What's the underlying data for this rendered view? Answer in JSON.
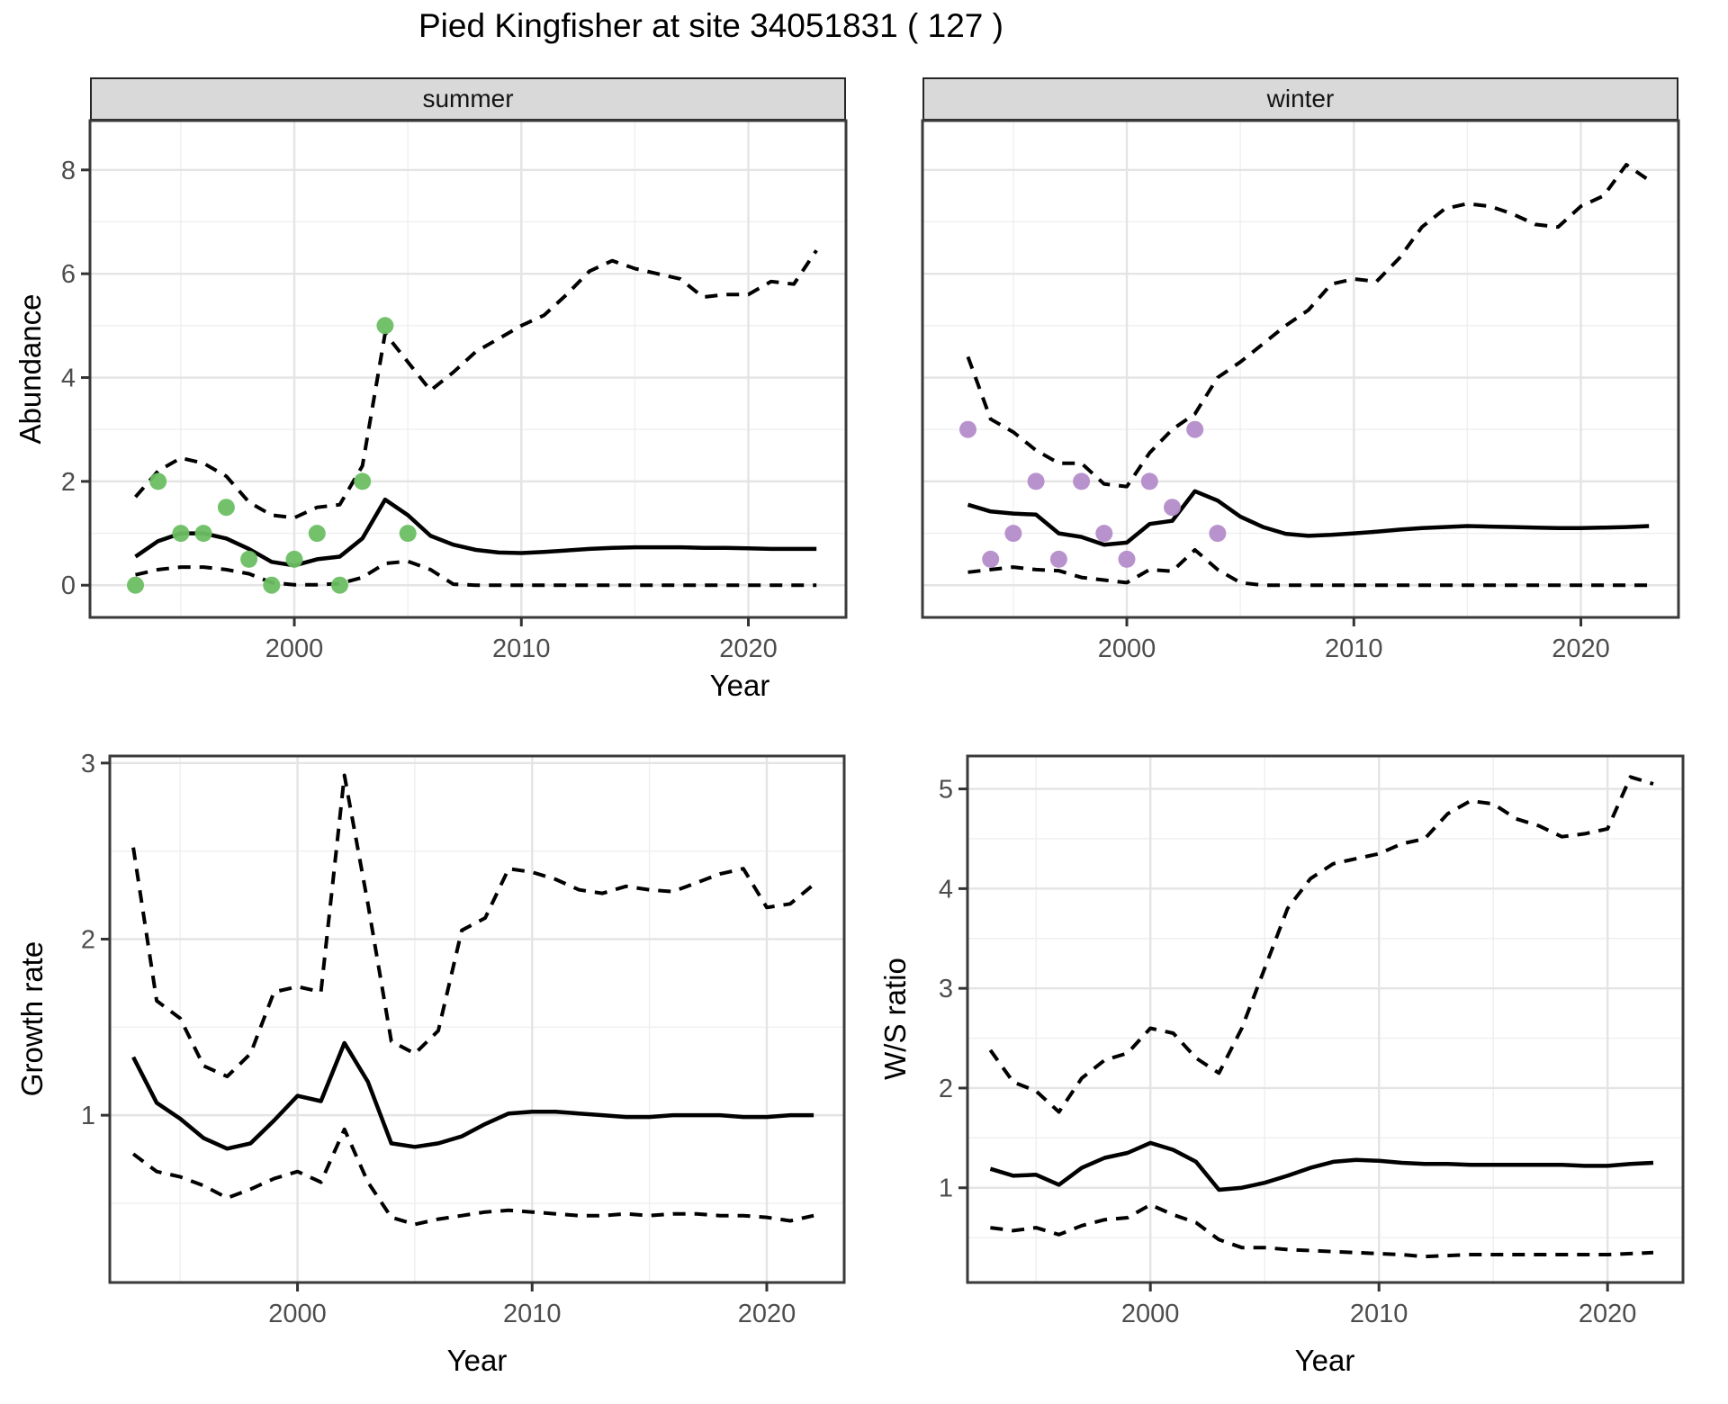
{
  "title": "Pied Kingfisher at site 34051831 ( 127 )",
  "top_xlabel": "Year",
  "colors": {
    "summer_point": "#6CBF63",
    "winter_point": "#B48CC9",
    "line": "#000000",
    "grid_major": "#E4E4E4",
    "grid_minor": "#EFEFEF",
    "panel_border": "#3A3A3A",
    "strip_bg": "#D9D9D9",
    "tick_text": "#4D4D4D",
    "panel_bg": "#FFFFFF"
  },
  "chart_data": [
    {
      "id": "abundance_summer",
      "type": "line",
      "facet_label": "summer",
      "ylabel": "Abundance",
      "xlabel": "Year",
      "x_ticks": [
        2000,
        2010,
        2020
      ],
      "y_ticks": [
        0,
        2,
        4,
        6,
        8
      ],
      "xlim": [
        1991.0,
        2024.3
      ],
      "ylim": [
        -0.62,
        8.95
      ],
      "minor_x": 5,
      "minor_y": 1,
      "grid": true,
      "legend": "none",
      "series": [
        {
          "name": "median_estimate",
          "style": "solid",
          "x": [
            1993,
            1994,
            1995,
            1996,
            1997,
            1998,
            1999,
            2000,
            2001,
            2002,
            2003,
            2004,
            2005,
            2006,
            2007,
            2008,
            2009,
            2010,
            2011,
            2012,
            2013,
            2014,
            2015,
            2016,
            2017,
            2018,
            2019,
            2020,
            2021,
            2022,
            2023
          ],
          "y": [
            0.55,
            0.85,
            1.0,
            1.0,
            0.9,
            0.7,
            0.45,
            0.38,
            0.5,
            0.55,
            0.9,
            1.65,
            1.35,
            0.95,
            0.78,
            0.68,
            0.63,
            0.62,
            0.64,
            0.67,
            0.7,
            0.72,
            0.73,
            0.73,
            0.73,
            0.72,
            0.72,
            0.71,
            0.7,
            0.7,
            0.7
          ]
        },
        {
          "name": "lower_ci",
          "style": "dashed",
          "x": [
            1993,
            1994,
            1995,
            1996,
            1997,
            1998,
            1999,
            2000,
            2001,
            2002,
            2003,
            2004,
            2005,
            2006,
            2007,
            2008,
            2009,
            2010,
            2011,
            2012,
            2013,
            2014,
            2015,
            2016,
            2017,
            2018,
            2019,
            2020,
            2021,
            2022,
            2023
          ],
          "y": [
            0.2,
            0.3,
            0.35,
            0.35,
            0.3,
            0.22,
            0.05,
            0.01,
            0.01,
            0.03,
            0.15,
            0.42,
            0.46,
            0.3,
            0.02,
            0,
            0,
            0,
            0,
            0,
            0,
            0,
            0,
            0,
            0,
            0,
            0,
            0,
            0,
            0,
            0
          ]
        },
        {
          "name": "upper_ci",
          "style": "dashed",
          "x": [
            1993,
            1994,
            1995,
            1996,
            1997,
            1998,
            1999,
            2000,
            2001,
            2002,
            2003,
            2004,
            2005,
            2006,
            2007,
            2008,
            2009,
            2010,
            2011,
            2012,
            2013,
            2014,
            2015,
            2016,
            2017,
            2018,
            2019,
            2020,
            2021,
            2022,
            2023
          ],
          "y": [
            1.7,
            2.2,
            2.45,
            2.35,
            2.1,
            1.6,
            1.35,
            1.3,
            1.5,
            1.55,
            2.3,
            4.85,
            4.3,
            3.75,
            4.1,
            4.5,
            4.75,
            5.0,
            5.2,
            5.6,
            6.05,
            6.25,
            6.1,
            6.0,
            5.9,
            5.55,
            5.6,
            5.6,
            5.85,
            5.8,
            6.45
          ]
        },
        {
          "name": "observed_counts",
          "style": "points",
          "color": "#6CBF63",
          "x": [
            1993,
            1994,
            1995,
            1996,
            1997,
            1998,
            1999,
            2000,
            2001,
            2002,
            2003,
            2004,
            2005
          ],
          "y": [
            0,
            2,
            1,
            1,
            1.5,
            0.5,
            0,
            0.5,
            1,
            0,
            2,
            5,
            1
          ]
        }
      ]
    },
    {
      "id": "abundance_winter",
      "type": "line",
      "facet_label": "winter",
      "ylabel": "Abundance",
      "xlabel": "Year",
      "x_ticks": [
        2000,
        2010,
        2020
      ],
      "y_ticks": [
        0,
        2,
        4,
        6,
        8
      ],
      "xlim": [
        1991.0,
        2024.3
      ],
      "ylim": [
        -0.62,
        8.95
      ],
      "minor_x": 5,
      "minor_y": 1,
      "grid": true,
      "legend": "none",
      "series": [
        {
          "name": "median_estimate",
          "style": "solid",
          "x": [
            1993,
            1994,
            1995,
            1996,
            1997,
            1998,
            1999,
            2000,
            2001,
            2002,
            2003,
            2004,
            2005,
            2006,
            2007,
            2008,
            2009,
            2010,
            2011,
            2012,
            2013,
            2014,
            2015,
            2016,
            2017,
            2018,
            2019,
            2020,
            2021,
            2022,
            2023
          ],
          "y": [
            1.55,
            1.42,
            1.38,
            1.36,
            1.0,
            0.93,
            0.78,
            0.82,
            1.18,
            1.24,
            1.81,
            1.63,
            1.32,
            1.12,
            0.99,
            0.95,
            0.97,
            1.0,
            1.03,
            1.07,
            1.1,
            1.12,
            1.14,
            1.13,
            1.12,
            1.11,
            1.1,
            1.1,
            1.11,
            1.12,
            1.14
          ]
        },
        {
          "name": "lower_ci",
          "style": "dashed",
          "x": [
            1993,
            1994,
            1995,
            1996,
            1997,
            1998,
            1999,
            2000,
            2001,
            2002,
            2003,
            2004,
            2005,
            2006,
            2007,
            2008,
            2009,
            2010,
            2011,
            2012,
            2013,
            2014,
            2015,
            2016,
            2017,
            2018,
            2019,
            2020,
            2021,
            2022,
            2023
          ],
          "y": [
            0.25,
            0.3,
            0.35,
            0.3,
            0.28,
            0.15,
            0.1,
            0.05,
            0.3,
            0.27,
            0.68,
            0.3,
            0.05,
            0,
            0,
            0,
            0,
            0,
            0,
            0,
            0,
            0,
            0,
            0,
            0,
            0,
            0,
            0,
            0,
            0,
            0
          ]
        },
        {
          "name": "upper_ci",
          "style": "dashed",
          "x": [
            1993,
            1994,
            1995,
            1996,
            1997,
            1998,
            1999,
            2000,
            2001,
            2002,
            2003,
            2004,
            2005,
            2006,
            2007,
            2008,
            2009,
            2010,
            2011,
            2012,
            2013,
            2014,
            2015,
            2016,
            2017,
            2018,
            2019,
            2020,
            2021,
            2022,
            2023
          ],
          "y": [
            4.4,
            3.2,
            2.95,
            2.6,
            2.35,
            2.35,
            1.95,
            1.9,
            2.55,
            3.0,
            3.3,
            4.0,
            4.3,
            4.65,
            5.0,
            5.3,
            5.8,
            5.9,
            5.85,
            6.3,
            6.9,
            7.25,
            7.35,
            7.3,
            7.15,
            6.95,
            6.9,
            7.3,
            7.5,
            8.1,
            7.8
          ]
        },
        {
          "name": "observed_counts",
          "style": "points",
          "color": "#B48CC9",
          "x": [
            1993,
            1994,
            1995,
            1996,
            1997,
            1998,
            1999,
            2000,
            2001,
            2002,
            2003,
            2004
          ],
          "y": [
            3,
            0.5,
            1,
            2,
            0.5,
            2,
            1,
            0.5,
            2,
            1.5,
            3,
            1
          ]
        }
      ]
    },
    {
      "id": "growth_rate",
      "type": "line",
      "facet_label": "",
      "ylabel": "Growth rate",
      "xlabel": "Year",
      "x_ticks": [
        2000,
        2010,
        2020
      ],
      "y_ticks": [
        1,
        2,
        3
      ],
      "xlim": [
        1992.0,
        2023.3
      ],
      "ylim": [
        0.05,
        3.04
      ],
      "minor_x": 5,
      "minor_y": 0.5,
      "grid": true,
      "legend": "none",
      "series": [
        {
          "name": "median_estimate",
          "style": "solid",
          "x": [
            1993,
            1994,
            1995,
            1996,
            1997,
            1998,
            1999,
            2000,
            2001,
            2002,
            2003,
            2004,
            2005,
            2006,
            2007,
            2008,
            2009,
            2010,
            2011,
            2012,
            2013,
            2014,
            2015,
            2016,
            2017,
            2018,
            2019,
            2020,
            2021,
            2022
          ],
          "y": [
            1.33,
            1.07,
            0.98,
            0.87,
            0.81,
            0.84,
            0.97,
            1.11,
            1.08,
            1.41,
            1.19,
            0.84,
            0.82,
            0.84,
            0.88,
            0.95,
            1.01,
            1.02,
            1.02,
            1.01,
            1.0,
            0.99,
            0.99,
            1.0,
            1.0,
            1.0,
            0.99,
            0.99,
            1.0,
            1.0
          ]
        },
        {
          "name": "lower_ci",
          "style": "dashed",
          "x": [
            1993,
            1994,
            1995,
            1996,
            1997,
            1998,
            1999,
            2000,
            2001,
            2002,
            2003,
            2004,
            2005,
            2006,
            2007,
            2008,
            2009,
            2010,
            2011,
            2012,
            2013,
            2014,
            2015,
            2016,
            2017,
            2018,
            2019,
            2020,
            2021,
            2022
          ],
          "y": [
            0.78,
            0.68,
            0.65,
            0.6,
            0.53,
            0.58,
            0.64,
            0.68,
            0.62,
            0.92,
            0.62,
            0.42,
            0.38,
            0.41,
            0.43,
            0.45,
            0.46,
            0.45,
            0.44,
            0.43,
            0.43,
            0.44,
            0.43,
            0.44,
            0.44,
            0.43,
            0.43,
            0.42,
            0.4,
            0.43
          ]
        },
        {
          "name": "upper_ci",
          "style": "dashed",
          "x": [
            1993,
            1994,
            1995,
            1996,
            1997,
            1998,
            1999,
            2000,
            2001,
            2002,
            2003,
            2004,
            2005,
            2006,
            2007,
            2008,
            2009,
            2010,
            2011,
            2012,
            2013,
            2014,
            2015,
            2016,
            2017,
            2018,
            2019,
            2020,
            2021,
            2022
          ],
          "y": [
            2.52,
            1.65,
            1.55,
            1.28,
            1.22,
            1.35,
            1.7,
            1.73,
            1.7,
            2.93,
            2.2,
            1.42,
            1.35,
            1.48,
            2.05,
            2.12,
            2.4,
            2.38,
            2.34,
            2.28,
            2.26,
            2.3,
            2.28,
            2.27,
            2.32,
            2.37,
            2.4,
            2.18,
            2.2,
            2.31
          ]
        }
      ]
    },
    {
      "id": "ws_ratio",
      "type": "line",
      "facet_label": "",
      "ylabel": "W/S ratio",
      "xlabel": "Year",
      "x_ticks": [
        2000,
        2010,
        2020
      ],
      "y_ticks": [
        1,
        2,
        3,
        4,
        5
      ],
      "xlim": [
        1992.0,
        2023.3
      ],
      "ylim": [
        0.05,
        5.33
      ],
      "minor_x": 5,
      "minor_y": 0.5,
      "grid": true,
      "legend": "none",
      "series": [
        {
          "name": "median_estimate",
          "style": "solid",
          "x": [
            1993,
            1994,
            1995,
            1996,
            1997,
            1998,
            1999,
            2000,
            2001,
            2002,
            2003,
            2004,
            2005,
            2006,
            2007,
            2008,
            2009,
            2010,
            2011,
            2012,
            2013,
            2014,
            2015,
            2016,
            2017,
            2018,
            2019,
            2020,
            2021,
            2022
          ],
          "y": [
            1.19,
            1.12,
            1.13,
            1.03,
            1.2,
            1.3,
            1.35,
            1.45,
            1.38,
            1.26,
            0.98,
            1.0,
            1.05,
            1.12,
            1.2,
            1.26,
            1.28,
            1.27,
            1.25,
            1.24,
            1.24,
            1.23,
            1.23,
            1.23,
            1.23,
            1.23,
            1.22,
            1.22,
            1.24,
            1.25
          ]
        },
        {
          "name": "lower_ci",
          "style": "dashed",
          "x": [
            1993,
            1994,
            1995,
            1996,
            1997,
            1998,
            1999,
            2000,
            2001,
            2002,
            2003,
            2004,
            2005,
            2006,
            2007,
            2008,
            2009,
            2010,
            2011,
            2012,
            2013,
            2014,
            2015,
            2016,
            2017,
            2018,
            2019,
            2020,
            2021,
            2022
          ],
          "y": [
            0.6,
            0.57,
            0.6,
            0.53,
            0.62,
            0.68,
            0.7,
            0.83,
            0.73,
            0.65,
            0.48,
            0.4,
            0.4,
            0.38,
            0.37,
            0.36,
            0.35,
            0.34,
            0.33,
            0.31,
            0.32,
            0.33,
            0.33,
            0.33,
            0.33,
            0.33,
            0.33,
            0.33,
            0.34,
            0.35
          ]
        },
        {
          "name": "upper_ci",
          "style": "dashed",
          "x": [
            1993,
            1994,
            1995,
            1996,
            1997,
            1998,
            1999,
            2000,
            2001,
            2002,
            2003,
            2004,
            2005,
            2006,
            2007,
            2008,
            2009,
            2010,
            2011,
            2012,
            2013,
            2014,
            2015,
            2016,
            2017,
            2018,
            2019,
            2020,
            2021,
            2022
          ],
          "y": [
            2.38,
            2.06,
            1.97,
            1.76,
            2.1,
            2.28,
            2.35,
            2.6,
            2.55,
            2.3,
            2.15,
            2.6,
            3.2,
            3.8,
            4.1,
            4.25,
            4.3,
            4.35,
            4.45,
            4.5,
            4.75,
            4.88,
            4.85,
            4.7,
            4.63,
            4.52,
            4.55,
            4.6,
            5.12,
            5.05
          ]
        }
      ]
    }
  ]
}
